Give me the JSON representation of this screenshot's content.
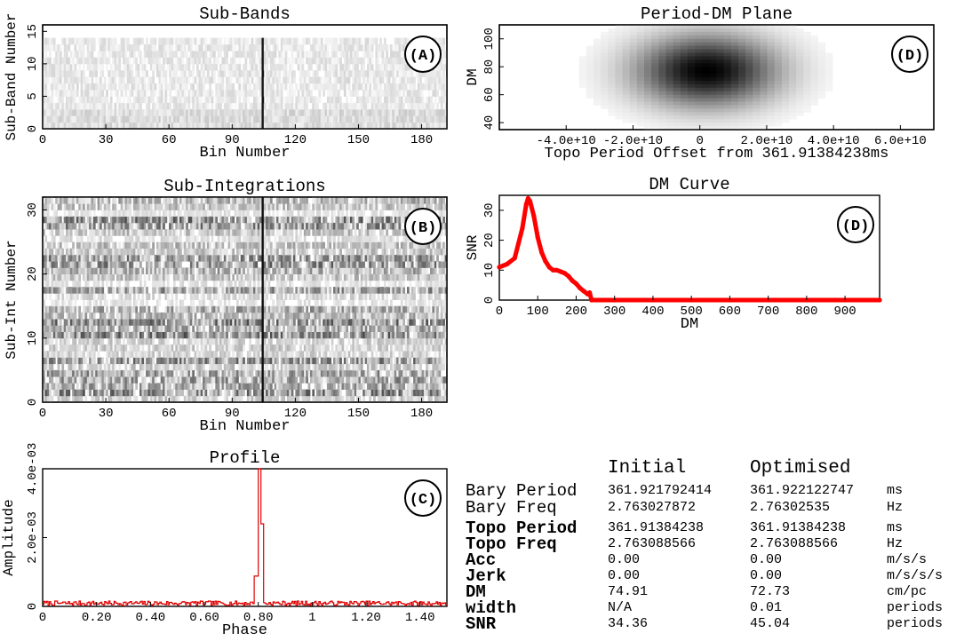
{
  "chart_data": [
    {
      "id": "A",
      "type": "heatmap",
      "title": "Sub-Bands",
      "xlabel": "Bin Number",
      "ylabel": "Sub-Band Number",
      "xticks": [
        "0",
        "30",
        "60",
        "90",
        "120",
        "150",
        "180"
      ],
      "yticks": [
        "0",
        "5",
        "10",
        "15"
      ],
      "xlim": [
        0,
        192
      ],
      "ylim": [
        0,
        16
      ],
      "panel_label": "(A)",
      "pulse_bin": 104,
      "cols": 192,
      "rows": 16
    },
    {
      "id": "B",
      "type": "heatmap",
      "title": "Sub-Integrations",
      "xlabel": "Bin Number",
      "ylabel": "Sub-Int Number",
      "xticks": [
        "0",
        "30",
        "60",
        "90",
        "120",
        "150",
        "180"
      ],
      "yticks": [
        "0",
        "10",
        "20",
        "30"
      ],
      "xlim": [
        0,
        192
      ],
      "ylim": [
        0,
        32
      ],
      "panel_label": "(B)",
      "pulse_bin": 104,
      "cols": 192,
      "rows": 32
    },
    {
      "id": "C",
      "type": "line",
      "title": "Profile",
      "xlabel": "Phase",
      "ylabel": "Amplitude",
      "xticks": [
        "0",
        "0.20",
        "0.40",
        "0.60",
        "0.80",
        "1",
        "1.20",
        "1.40"
      ],
      "yticks": [
        "0",
        "2.0e-03",
        "4.0e-03"
      ],
      "xlim": [
        0,
        1.5
      ],
      "ylim": [
        0,
        0.004
      ],
      "panel_label": "(C)",
      "color": "#e00000",
      "peak_phase": 0.8,
      "peak_amplitude": 0.004,
      "noise_level": 0.00012
    },
    {
      "id": "D1",
      "type": "heatmap",
      "title": "Period-DM Plane",
      "xlabel": "Topo Period Offset from 361.91384238ms",
      "ylabel": "DM",
      "xticks": [
        "-4.0e+10",
        "-2.0e+10",
        "0",
        "2.0e+10",
        "4.0e+10",
        "6.0e+10"
      ],
      "yticks": [
        "40",
        "60",
        "80",
        "100"
      ],
      "xlim": [
        -60000000000.0,
        70000000000.0
      ],
      "ylim": [
        35,
        110
      ],
      "panel_label": "(D)",
      "peak": {
        "x": 2000000000.0,
        "y": 77
      }
    },
    {
      "id": "D2",
      "type": "scatter",
      "title": "DM Curve",
      "xlabel": "DM",
      "ylabel": "SNR",
      "xticks": [
        "0",
        "100",
        "200",
        "300",
        "400",
        "500",
        "600",
        "700",
        "800",
        "900"
      ],
      "yticks": [
        "0",
        "10",
        "20",
        "30"
      ],
      "xlim": [
        0,
        990
      ],
      "ylim": [
        0,
        35
      ],
      "panel_label": "(D)",
      "color": "#ff0000",
      "series": [
        {
          "x": [
            0,
            20,
            40,
            60,
            70,
            75,
            80,
            90,
            100,
            110,
            120,
            130,
            140,
            150,
            160,
            170,
            180,
            190,
            200,
            210,
            220,
            230,
            235,
            240,
            300,
            400,
            500,
            600,
            700,
            800,
            900,
            990
          ],
          "y": [
            11,
            12,
            14,
            24,
            32,
            34,
            33,
            28,
            21,
            16,
            13,
            11,
            10,
            10,
            9.5,
            9,
            8,
            6.5,
            5.5,
            4,
            3,
            2,
            2.5,
            0,
            0,
            0,
            0,
            0,
            0,
            0,
            0,
            0
          ]
        }
      ]
    }
  ],
  "table": {
    "headers": {
      "initial": "Initial",
      "optimised": "Optimised"
    },
    "rows": [
      {
        "name": "Bary Period",
        "initial": "361.921792414",
        "optimised": "361.922122747",
        "unit": "ms",
        "bold": false
      },
      {
        "name": "Bary Freq",
        "initial": "2.763027872",
        "optimised": "2.76302535",
        "unit": "Hz",
        "bold": false
      },
      {
        "name": "Topo Period",
        "initial": "361.91384238",
        "optimised": "361.91384238",
        "unit": "ms",
        "bold": true
      },
      {
        "name": "Topo Freq",
        "initial": "2.763088566",
        "optimised": "2.763088566",
        "unit": "Hz",
        "bold": true
      },
      {
        "name": "Acc",
        "initial": "0.00",
        "optimised": "0.00",
        "unit": "m/s/s",
        "bold": true
      },
      {
        "name": "Jerk",
        "initial": "0.00",
        "optimised": "0.00",
        "unit": "m/s/s/s",
        "bold": true
      },
      {
        "name": "DM",
        "initial": "74.91",
        "optimised": "72.73",
        "unit": "cm/pc",
        "bold": true
      },
      {
        "name": "width",
        "initial": "N/A",
        "optimised": "0.01",
        "unit": "periods",
        "bold": true
      },
      {
        "name": "SNR",
        "initial": "34.36",
        "optimised": "45.04",
        "unit": "periods",
        "bold": true
      }
    ]
  }
}
